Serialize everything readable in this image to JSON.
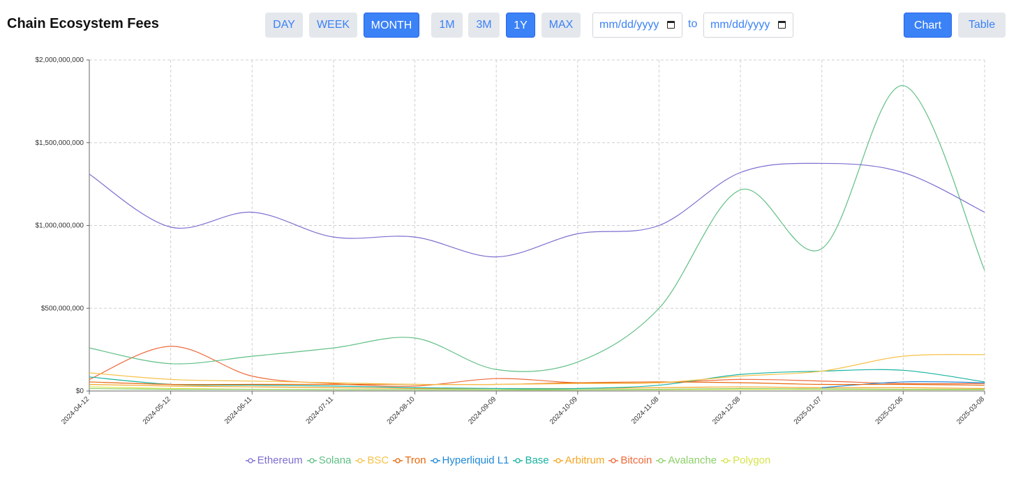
{
  "header": {
    "title": "Chain Ecosystem Fees",
    "granularity": [
      "DAY",
      "WEEK",
      "MONTH"
    ],
    "granularity_active": "MONTH",
    "ranges": [
      "1M",
      "3M",
      "1Y",
      "MAX"
    ],
    "range_active": "1Y",
    "date_from_placeholder": "mm/dd/yyyy",
    "date_to_placeholder": "mm/dd/yyyy",
    "date_separator": "to",
    "view_chart": "Chart",
    "view_table": "Table",
    "view_active": "Chart"
  },
  "chart_data": {
    "type": "line",
    "title": "Chain Ecosystem Fees",
    "xlabel": "",
    "ylabel": "",
    "x": [
      "2024-04-12",
      "2024-05-12",
      "2024-06-11",
      "2024-07-11",
      "2024-08-10",
      "2024-09-09",
      "2024-10-09",
      "2024-11-08",
      "2024-12-08",
      "2025-01-07",
      "2025-02-06",
      "2025-03-08"
    ],
    "yticks": [
      "$0",
      "$500,000,000",
      "$1,000,000,000",
      "$1,500,000,000",
      "$2,000,000,000"
    ],
    "ylim": [
      0,
      2000000000
    ],
    "grid": true,
    "legend_position": "bottom",
    "series": [
      {
        "name": "Ethereum",
        "color": "#7b6fd0",
        "values": [
          1310000000,
          990000000,
          1080000000,
          930000000,
          930000000,
          810000000,
          950000000,
          1000000000,
          1320000000,
          1375000000,
          1320000000,
          1080000000
        ]
      },
      {
        "name": "Solana",
        "color": "#5fbf85",
        "values": [
          260000000,
          165000000,
          210000000,
          260000000,
          320000000,
          130000000,
          175000000,
          500000000,
          1215000000,
          860000000,
          1845000000,
          730000000
        ]
      },
      {
        "name": "BSC",
        "color": "#f6c24a",
        "values": [
          110000000,
          70000000,
          60000000,
          50000000,
          40000000,
          40000000,
          45000000,
          50000000,
          90000000,
          120000000,
          210000000,
          220000000
        ]
      },
      {
        "name": "Tron",
        "color": "#e8670c",
        "values": [
          55000000,
          40000000,
          40000000,
          40000000,
          40000000,
          40000000,
          50000000,
          55000000,
          50000000,
          40000000,
          40000000,
          35000000
        ]
      },
      {
        "name": "Hyperliquid L1",
        "color": "#1e88d8",
        "values": [
          null,
          null,
          null,
          null,
          null,
          null,
          null,
          null,
          null,
          20000000,
          55000000,
          50000000
        ]
      },
      {
        "name": "Base",
        "color": "#17b3a0",
        "values": [
          85000000,
          40000000,
          35000000,
          30000000,
          20000000,
          15000000,
          15000000,
          35000000,
          100000000,
          120000000,
          125000000,
          55000000
        ]
      },
      {
        "name": "Arbitrum",
        "color": "#f5a623",
        "values": [
          40000000,
          30000000,
          25000000,
          20000000,
          15000000,
          15000000,
          15000000,
          20000000,
          25000000,
          20000000,
          20000000,
          15000000
        ]
      },
      {
        "name": "Bitcoin",
        "color": "#ee6a3a",
        "values": [
          70000000,
          270000000,
          90000000,
          45000000,
          30000000,
          75000000,
          50000000,
          50000000,
          70000000,
          60000000,
          45000000,
          45000000
        ]
      },
      {
        "name": "Avalanche",
        "color": "#8bd067",
        "values": [
          15000000,
          10000000,
          10000000,
          8000000,
          8000000,
          8000000,
          8000000,
          10000000,
          15000000,
          12000000,
          10000000,
          10000000
        ]
      },
      {
        "name": "Polygon",
        "color": "#d6e44a",
        "values": [
          25000000,
          15000000,
          10000000,
          8000000,
          8000000,
          6000000,
          6000000,
          8000000,
          10000000,
          10000000,
          8000000,
          8000000
        ]
      }
    ]
  }
}
